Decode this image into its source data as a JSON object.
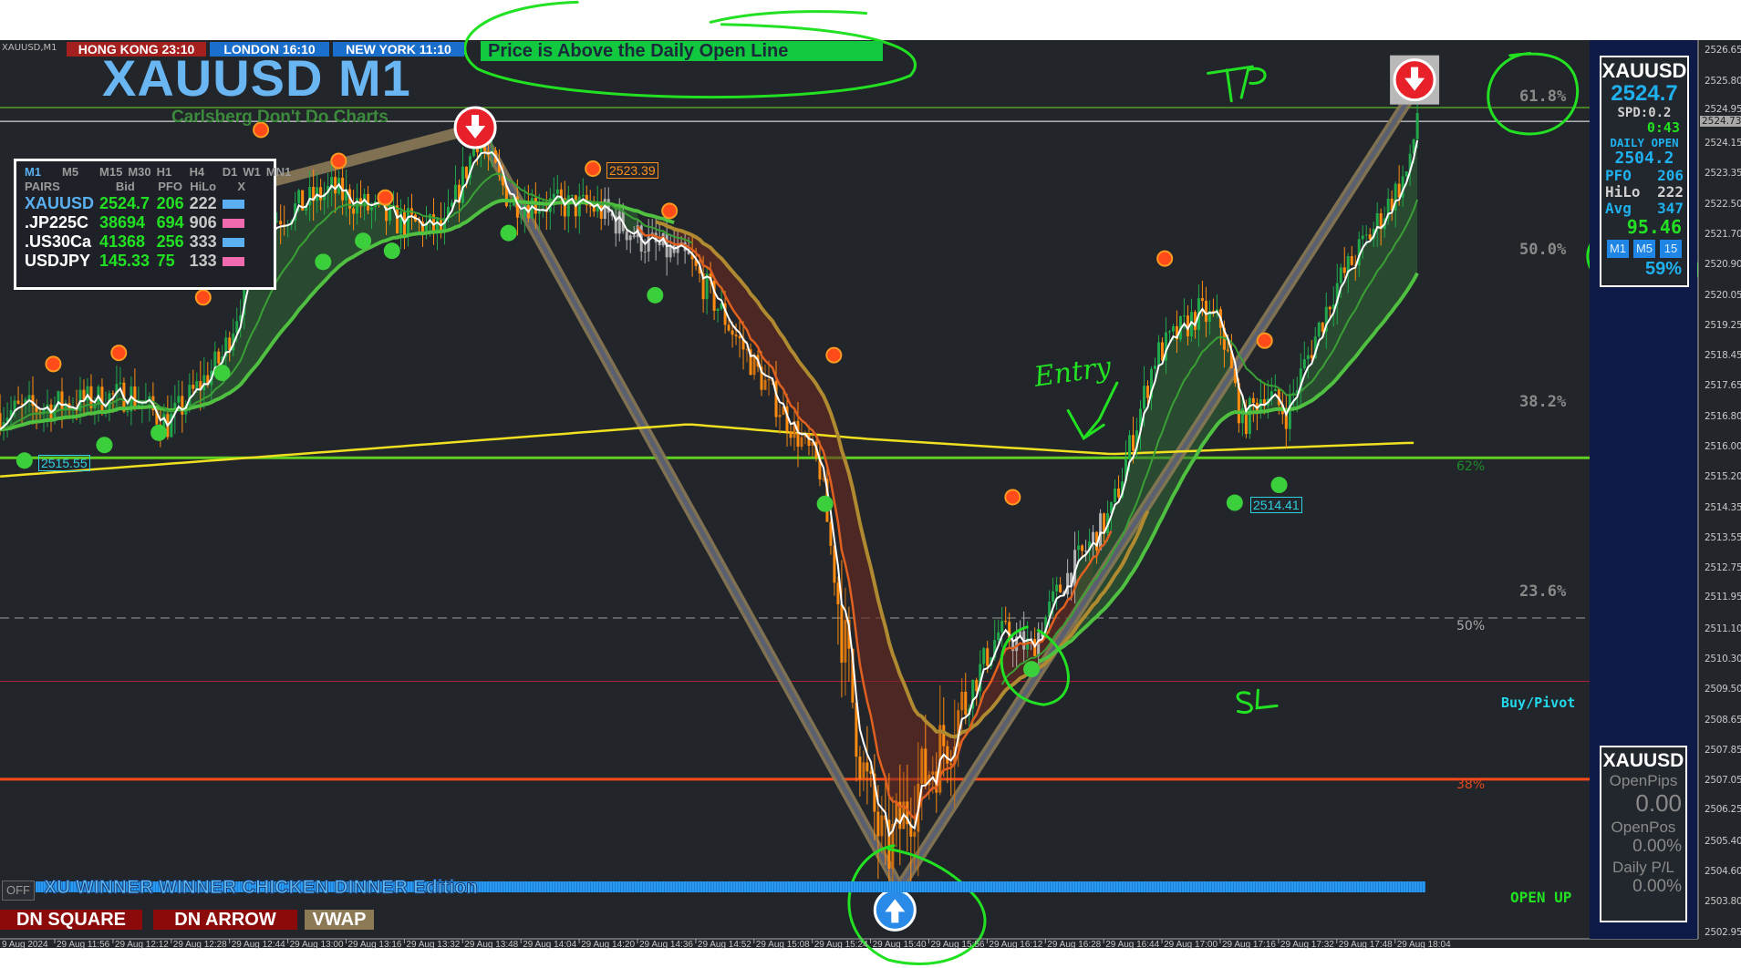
{
  "header": {
    "symbol_tag": "XAUUSD,M1",
    "sessions": [
      {
        "label": "HONG KONG 23:10",
        "color": "#a3201f"
      },
      {
        "label": "LONDON  16:10",
        "color": "#1b6fcc"
      },
      {
        "label": "NEW YORK  11:10",
        "color": "#1b6fcc"
      }
    ],
    "banner": "Price is Above the Daily Open Line",
    "banner_color": "#12c83e",
    "title": "XAUUSD M1",
    "subtitle": "Carlsberg Don't Do Charts"
  },
  "pairs_table": {
    "timeframes": [
      "M1",
      "M5",
      "M15",
      "M30",
      "H1",
      "H4",
      "D1",
      "W1",
      "MN1"
    ],
    "active_timeframe": "M1",
    "columns": [
      "PAIRS",
      "Bid",
      "PFO",
      "HiLo",
      "X"
    ],
    "rows": [
      {
        "pair": "XAUUSD",
        "bid": "2524.7",
        "pfo": "206",
        "hilo": "222",
        "swatch": "#5ab0f0"
      },
      {
        "pair": ".JP225C",
        "bid": "38694",
        "pfo": "694",
        "hilo": "906",
        "swatch": "#f06ab0"
      },
      {
        "pair": ".US30Ca",
        "bid": "41368",
        "pfo": "256",
        "hilo": "333",
        "swatch": "#5ab0f0"
      },
      {
        "pair": "USDJPY",
        "bid": "145.33",
        "pfo": "75",
        "hilo": "133",
        "swatch": "#f06ab0"
      }
    ]
  },
  "info_panel": {
    "symbol": "XAUUSD",
    "price": "2524.7",
    "spread": "SPD:0.2",
    "timer": "0:43",
    "daily_open_label": "DAILY OPEN",
    "daily_open": "2504.2",
    "pfo_label": "PFO",
    "pfo": "206",
    "hilo_label": "HiLo",
    "hilo": "222",
    "avg_label": "Avg",
    "avg": "347",
    "value": "95.46",
    "tf_buttons": [
      "M1",
      "M5",
      "15"
    ],
    "percent": "59%"
  },
  "pl_panel": {
    "symbol": "XAUUSD",
    "open_pips_label": "OpenPips",
    "open_pips": "0.00",
    "open_pos_label": "OpenPos",
    "open_pos": "0.00%",
    "daily_pl_label": "Daily P/L",
    "daily_pl": "0.00%"
  },
  "bottom": {
    "off_label": "OFF",
    "edition": "XU WINNER WINNER CHICKEN DINNER Edition",
    "buttons": [
      {
        "label": "DN SQUARE",
        "color": "#8b0a0a"
      },
      {
        "label": "DN ARROW",
        "color": "#8b0a0a"
      },
      {
        "label": "VWAP",
        "color": "#8c7a56"
      }
    ]
  },
  "levels_text": {
    "buy_pivot": "Buy/Pivot",
    "open_up": "OPEN UP",
    "pct62": "62%",
    "pct50": "50%",
    "pct38": "38%"
  },
  "annotations": {
    "tp": "TP",
    "entry": "Entry",
    "sl": "SL"
  },
  "chart_data": {
    "type": "candlestick",
    "symbol": "XAUUSD",
    "timeframe": "M1",
    "ylim": [
      2502.95,
      2526.65
    ],
    "y_ticks": [
      "2526.65",
      "2525.80",
      "2524.95",
      "2524.15",
      "2523.35",
      "2522.50",
      "2521.70",
      "2520.90",
      "2520.05",
      "2519.25",
      "2518.45",
      "2517.65",
      "2516.80",
      "2516.00",
      "2515.20",
      "2514.35",
      "2513.55",
      "2512.75",
      "2511.95",
      "2511.10",
      "2510.30",
      "2509.50",
      "2508.65",
      "2507.85",
      "2507.05",
      "2506.25",
      "2505.40",
      "2504.60",
      "2503.80",
      "2502.95"
    ],
    "x_ticks": [
      "9 Aug 2024",
      "29 Aug 11:56",
      "29 Aug 12:12",
      "29 Aug 12:28",
      "29 Aug 12:44",
      "29 Aug 13:00",
      "29 Aug 13:16",
      "29 Aug 13:32",
      "29 Aug 13:48",
      "29 Aug 14:04",
      "29 Aug 14:20",
      "29 Aug 14:36",
      "29 Aug 14:52",
      "29 Aug 15:08",
      "29 Aug 15:24",
      "29 Aug 15:40",
      "29 Aug 15:56",
      "29 Aug 16:12",
      "29 Aug 16:28",
      "29 Aug 16:44",
      "29 Aug 17:00",
      "29 Aug 17:16",
      "29 Aug 17:32",
      "29 Aug 17:48",
      "29 Aug 18:04"
    ],
    "current_price": "2524.73",
    "price_path": [
      [
        "11:41",
        2516.9
      ],
      [
        "12:17",
        2517.4
      ],
      [
        "12:27",
        2516.6
      ],
      [
        "12:42",
        2518.4
      ],
      [
        "12:54",
        2522.0
      ],
      [
        "13:12",
        2522.9
      ],
      [
        "13:28",
        2522.1
      ],
      [
        "13:43",
        2521.8
      ],
      [
        "13:52",
        2524.3
      ],
      [
        "14:01",
        2522.6
      ],
      [
        "14:25",
        2522.4
      ],
      [
        "14:38",
        2521.5
      ],
      [
        "14:50",
        2521.0
      ],
      [
        "14:59",
        2519.6
      ],
      [
        "15:14",
        2517.2
      ],
      [
        "15:26",
        2515.4
      ],
      [
        "15:32",
        2511.2
      ],
      [
        "15:38",
        2507.2
      ],
      [
        "15:44",
        2505.0
      ],
      [
        "15:51",
        2506.5
      ],
      [
        "16:03",
        2508.6
      ],
      [
        "16:15",
        2511.0
      ],
      [
        "16:24",
        2510.6
      ],
      [
        "16:33",
        2512.4
      ],
      [
        "16:46",
        2514.2
      ],
      [
        "16:58",
        2518.4
      ],
      [
        "17:10",
        2519.6
      ],
      [
        "17:16",
        2519.3
      ],
      [
        "17:22",
        2516.6
      ],
      [
        "17:28",
        2517.5
      ],
      [
        "17:34",
        2516.9
      ],
      [
        "17:47",
        2520.2
      ],
      [
        "17:59",
        2522.0
      ],
      [
        "18:08",
        2523.5
      ],
      [
        "18:10",
        2525.0
      ]
    ],
    "vwap": [
      [
        "11:41",
        2515.2
      ],
      [
        "13:30",
        2516.0
      ],
      [
        "14:50",
        2516.6
      ],
      [
        "15:40",
        2516.2
      ],
      [
        "16:46",
        2515.8
      ],
      [
        "18:08",
        2516.1
      ]
    ],
    "horizontal_levels": [
      {
        "price": 2525.1,
        "color": "#6fdc2a",
        "label": "61.8%"
      },
      {
        "price": 2524.73,
        "color": "#ffffff",
        "label": ""
      },
      {
        "price": 2515.7,
        "color": "#5fd020",
        "label": "62%"
      },
      {
        "price": 2511.4,
        "color": "#9a9a9a",
        "label": "50%",
        "style": "dashed"
      },
      {
        "price": 2509.7,
        "color": "#b0203a",
        "label": ""
      },
      {
        "price": 2507.07,
        "color": "#ff4a1a",
        "label": "38%"
      }
    ],
    "fib_labels": [
      {
        "label": "61.8%",
        "price": 2525.3
      },
      {
        "label": "50.0%",
        "price": 2521.2
      },
      {
        "label": "38.2%",
        "price": 2517.1
      },
      {
        "label": "23.6%",
        "price": 2512.0
      }
    ],
    "price_labels": [
      {
        "label": "2523.39",
        "color": "#ff9020"
      },
      {
        "label": "2515.55",
        "color": "#30d0e0"
      },
      {
        "label": "2514.41",
        "color": "#30d0e0"
      }
    ],
    "legend": "none",
    "grid": false
  }
}
